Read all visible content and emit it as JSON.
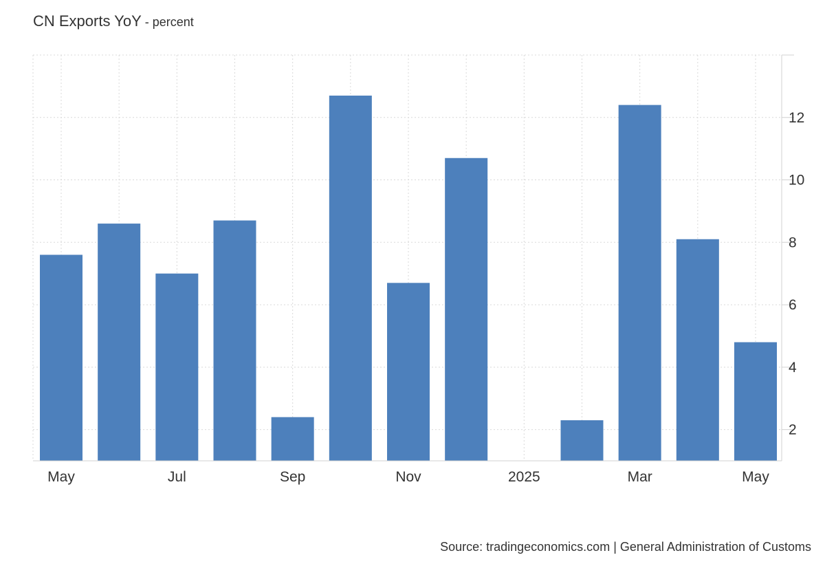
{
  "header": {
    "title": "CN Exports YoY",
    "subtitle": " - percent"
  },
  "source": "Source: tradingeconomics.com | General Administration of Customs",
  "colors": {
    "bar": "#4d80bc",
    "grid": "#d9d9d9",
    "axis": "#d0d0d0",
    "text": "#333333"
  },
  "chart_data": {
    "type": "bar",
    "title": "CN Exports YoY",
    "subtitle": "percent",
    "categories": [
      "2024-05",
      "2024-06",
      "2024-07",
      "2024-08",
      "2024-09",
      "2024-10",
      "2024-11",
      "2024-12",
      "2025-01",
      "2025-02",
      "2025-03",
      "2025-04",
      "2025-05"
    ],
    "values": [
      7.6,
      8.6,
      7.0,
      8.7,
      2.4,
      12.7,
      6.7,
      10.7,
      null,
      2.3,
      12.4,
      8.1,
      4.8
    ],
    "x_tick_labels": [
      {
        "category": "2024-05",
        "label": "May"
      },
      {
        "category": "2024-07",
        "label": "Jul"
      },
      {
        "category": "2024-09",
        "label": "Sep"
      },
      {
        "category": "2024-11",
        "label": "Nov"
      },
      {
        "category": "2025-01",
        "label": "2025"
      },
      {
        "category": "2025-03",
        "label": "Mar"
      },
      {
        "category": "2025-05",
        "label": "May"
      }
    ],
    "y_ticks": [
      2,
      4,
      6,
      8,
      10,
      12
    ],
    "ylim": [
      1,
      14
    ],
    "y_axis_side": "right",
    "grid": true,
    "legend": "none"
  }
}
